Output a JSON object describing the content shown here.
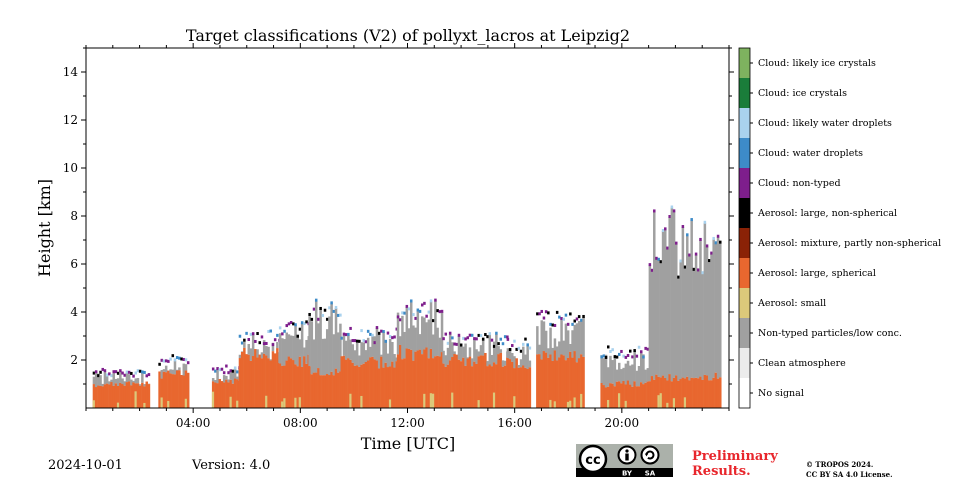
{
  "chart_data": {
    "type": "heatmap",
    "title": "Target classifications (V2) of pollyxt_lacros at Leipzig2",
    "xlabel": "Time [UTC]",
    "ylabel": "Height [km]",
    "xlim": [
      0,
      24
    ],
    "ylim": [
      0,
      15
    ],
    "x_ticks": [
      4,
      8,
      12,
      16,
      20
    ],
    "x_tick_labels": [
      "04:00",
      "08:00",
      "12:00",
      "16:00",
      "20:00"
    ],
    "y_ticks": [
      2,
      4,
      6,
      8,
      10,
      12,
      14
    ],
    "y_tick_labels": [
      "2",
      "4",
      "6",
      "8",
      "10",
      "12",
      "14"
    ],
    "legend_position": "right colorbar",
    "classes": [
      {
        "label": "No signal",
        "color": "#ffffff"
      },
      {
        "label": "Clean atmosphere",
        "color": "#ececec"
      },
      {
        "label": "Non-typed particles/low conc.",
        "color": "#a0a0a0"
      },
      {
        "label": "Aerosol: small",
        "color": "#dcc97a"
      },
      {
        "label": "Aerosol: large, spherical",
        "color": "#e8672f"
      },
      {
        "label": "Aerosol: mixture, partly non-spherical",
        "color": "#8a2206"
      },
      {
        "label": "Aerosol: large, non-spherical",
        "color": "#000000"
      },
      {
        "label": "Cloud: non-typed",
        "color": "#7e1e8c"
      },
      {
        "label": "Cloud: water droplets",
        "color": "#3d8bc8"
      },
      {
        "label": "Cloud: likely water droplets",
        "color": "#a9d2ee"
      },
      {
        "label": "Cloud: ice crystals",
        "color": "#1a7d3a"
      },
      {
        "label": "Cloud: likely ice crystals",
        "color": "#7eb25f"
      }
    ],
    "columns": [
      {
        "t0": 0.25,
        "t1": 2.35,
        "aerosol_top": 1.0,
        "gray_top": 1.3,
        "cloud_top": 1.45
      },
      {
        "t0": 2.7,
        "t1": 3.8,
        "aerosol_top": 1.4,
        "gray_top": 1.7,
        "cloud_top": 2.0
      },
      {
        "t0": 4.7,
        "t1": 5.7,
        "aerosol_top": 1.1,
        "gray_top": 1.4,
        "cloud_top": 1.6
      },
      {
        "t0": 5.7,
        "t1": 7.2,
        "aerosol_top": 2.2,
        "gray_top": 2.7,
        "cloud_top": 2.9
      },
      {
        "t0": 7.2,
        "t1": 8.3,
        "aerosol_top": 2.0,
        "gray_top": 3.2,
        "cloud_top": 3.3
      },
      {
        "t0": 8.3,
        "t1": 9.5,
        "aerosol_top": 1.6,
        "gray_top": 3.8,
        "cloud_top": 4.0
      },
      {
        "t0": 9.5,
        "t1": 11.6,
        "aerosol_top": 1.9,
        "gray_top": 2.8,
        "cloud_top": 3.0
      },
      {
        "t0": 11.6,
        "t1": 13.3,
        "aerosol_top": 2.3,
        "gray_top": 3.8,
        "cloud_top": 4.0
      },
      {
        "t0": 13.3,
        "t1": 15.7,
        "aerosol_top": 2.0,
        "gray_top": 2.6,
        "cloud_top": 2.8
      },
      {
        "t0": 15.7,
        "t1": 16.6,
        "aerosol_top": 1.9,
        "gray_top": 2.3,
        "cloud_top": 2.6
      },
      {
        "t0": 16.8,
        "t1": 18.6,
        "aerosol_top": 2.1,
        "gray_top": 3.3,
        "cloud_top": 3.7
      },
      {
        "t0": 19.2,
        "t1": 21.0,
        "aerosol_top": 1.0,
        "gray_top": 2.0,
        "cloud_top": 2.3
      },
      {
        "t0": 21.0,
        "t1": 23.7,
        "aerosol_top": 1.3,
        "gray_top": 7.0,
        "cloud_top": 2.6
      }
    ]
  },
  "footer": {
    "date": "2024-10-01",
    "version": "Version: 4.0",
    "preliminary_line1": "Preliminary",
    "preliminary_line2": "Results.",
    "copyright_line1": "© TROPOS 2024.",
    "copyright_line2": "CC BY SA 4.0 License.",
    "cc_by": "BY",
    "cc_sa": "SA",
    "cc_mark": "cc"
  }
}
